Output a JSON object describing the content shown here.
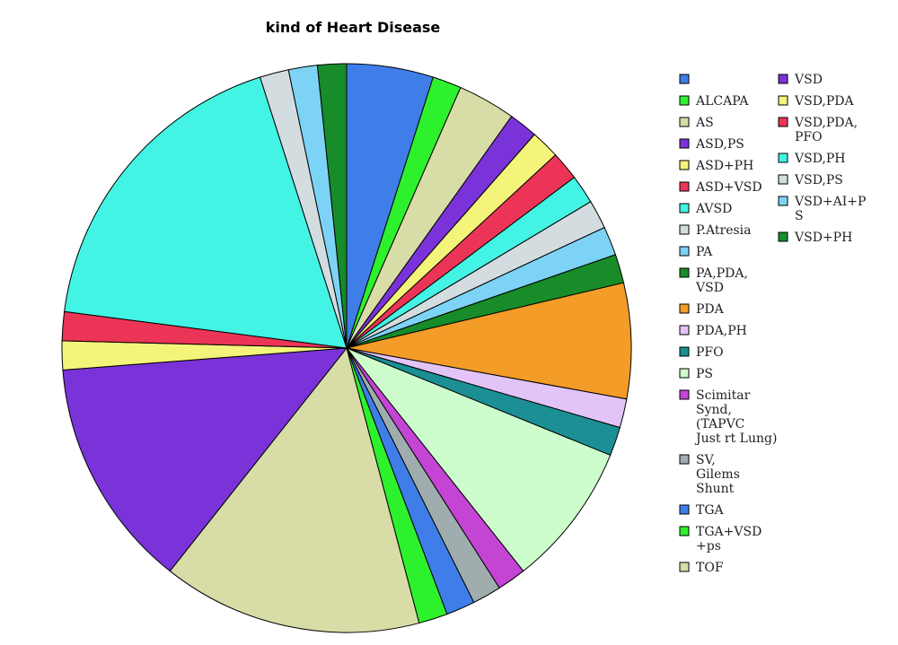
{
  "chart_data": {
    "type": "pie",
    "title": "kind of Heart Disease",
    "legend_placement": "right",
    "slices": [
      {
        "label": "",
        "value": 3,
        "color": "#3f7ee8"
      },
      {
        "label": "ALCAPA",
        "value": 1,
        "color": "#2ef12e"
      },
      {
        "label": "AS",
        "value": 2,
        "color": "#d8dca6"
      },
      {
        "label": "ASD,PS",
        "value": 1,
        "color": "#7a33d8"
      },
      {
        "label": "ASD+PH",
        "value": 1,
        "color": "#f4f47a"
      },
      {
        "label": "ASD+VSD",
        "value": 1,
        "color": "#ec3556"
      },
      {
        "label": "AVSD",
        "value": 1,
        "color": "#43f4e4"
      },
      {
        "label": "P.Atresia",
        "value": 1,
        "color": "#d3dde0"
      },
      {
        "label": "PA",
        "value": 1,
        "color": "#7dd3f5"
      },
      {
        "label": "PA,PDA,\nVSD",
        "value": 1,
        "color": "#178c28"
      },
      {
        "label": "PDA",
        "value": 4,
        "color": "#f39c27"
      },
      {
        "label": "PDA,PH",
        "value": 1,
        "color": "#e2c4f9"
      },
      {
        "label": "PFO",
        "value": 1,
        "color": "#1c8f94"
      },
      {
        "label": "PS",
        "value": 5,
        "color": "#cdfdcd"
      },
      {
        "label": "Scimitar\nSynd,\n(TAPVC\nJust rt Lung)",
        "value": 1,
        "color": "#c444d4"
      },
      {
        "label": "SV,\nGilems\nShunt",
        "value": 1,
        "color": "#9fadaf"
      },
      {
        "label": "TGA",
        "value": 1,
        "color": "#3f7ee8"
      },
      {
        "label": "TGA+VSD\n+ps",
        "value": 1,
        "color": "#2ef12e"
      },
      {
        "label": "TOF",
        "value": 9,
        "color": "#d8dca6"
      },
      {
        "label": "VSD",
        "value": 8,
        "color": "#7a33d8"
      },
      {
        "label": "VSD,PDA",
        "value": 1,
        "color": "#f4f47a"
      },
      {
        "label": "VSD,PDA,\nPFO",
        "value": 1,
        "color": "#ec3556"
      },
      {
        "label": "VSD,PH",
        "value": 11,
        "color": "#43f4e4"
      },
      {
        "label": "VSD,PS",
        "value": 1,
        "color": "#d3dde0"
      },
      {
        "label": "VSD+AI+P\nS",
        "value": 1,
        "color": "#7dd3f5"
      },
      {
        "label": "VSD+PH",
        "value": 1,
        "color": "#178c28"
      }
    ]
  }
}
